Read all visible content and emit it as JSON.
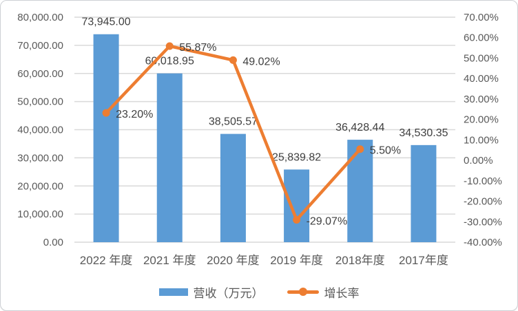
{
  "chart_data": {
    "type": "bar",
    "subtype": "combo-bar-line-dual-axis",
    "title": "",
    "categories": [
      "2022 年度",
      "2021 年度",
      "2020 年度",
      "2019 年度",
      "2018年度",
      "2017年度"
    ],
    "series": [
      {
        "name": "营收（万元）",
        "type": "bar",
        "axis": "left",
        "color": "#5B9BD5",
        "values": [
          73945.0,
          60018.95,
          38505.57,
          25839.82,
          36428.44,
          34530.35
        ],
        "labels": [
          "73,945.00",
          "60,018.95",
          "38,505.57",
          "25,839.82",
          "36,428.44",
          "34,530.35"
        ]
      },
      {
        "name": "增长率",
        "type": "line",
        "axis": "right",
        "color": "#ED7D31",
        "values": [
          23.2,
          55.87,
          49.02,
          -29.07,
          5.5,
          null
        ],
        "labels": [
          "23.20%",
          "55.87%",
          "49.02%",
          "-29.07%",
          "5.50%",
          null
        ]
      }
    ],
    "left_axis": {
      "min": 0,
      "max": 80000,
      "step": 10000,
      "tick_labels": [
        "0.00",
        "10,000.00",
        "20,000.00",
        "30,000.00",
        "40,000.00",
        "50,000.00",
        "60,000.00",
        "70,000.00",
        "80,000.00"
      ]
    },
    "right_axis": {
      "min": -40,
      "max": 70,
      "step": 10,
      "tick_labels": [
        "-40.00%",
        "-30.00%",
        "-20.00%",
        "-10.00%",
        "0.00%",
        "10.00%",
        "20.00%",
        "30.00%",
        "40.00%",
        "50.00%",
        "60.00%",
        "70.00%"
      ]
    },
    "grid": "horizontal",
    "legend_position": "bottom",
    "colors": {
      "bar": "#5B9BD5",
      "line": "#ED7D31",
      "grid": "#D9D9D9",
      "axis_text": "#595959",
      "data_label_text": "#404040",
      "background": "#FFFFFF"
    }
  }
}
